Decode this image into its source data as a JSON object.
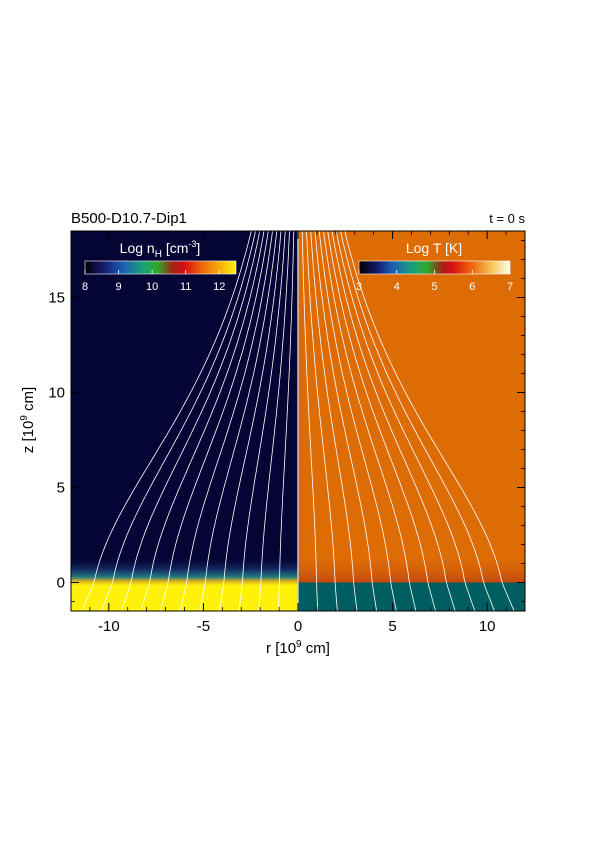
{
  "chart_data": {
    "type": "heatmap",
    "title_left": "B500-D10.7-Dip1",
    "title_right": "t = 0 s",
    "xlabel": "r [10",
    "xlabel_exp": "9",
    "xlabel_unit": " cm]",
    "ylabel": "z [10",
    "ylabel_exp": "9",
    "ylabel_unit": " cm]",
    "xlim": [
      -12,
      12
    ],
    "ylim": [
      -1.5,
      18.5
    ],
    "xticks": [
      -10,
      -5,
      0,
      5,
      10
    ],
    "xtick_labels": [
      "-10",
      "-5",
      "0",
      "5",
      "10"
    ],
    "yticks": [
      0,
      5,
      10,
      15
    ],
    "ytick_labels": [
      "0",
      "5",
      "10",
      "15"
    ],
    "panels": [
      {
        "name": "density",
        "side": "left",
        "colorbar_label": "Log n",
        "colorbar_label_sub": "H",
        "colorbar_label_unit": " [cm",
        "colorbar_label_exp": "-3",
        "colorbar_label_end": "]",
        "colorbar_range": [
          8,
          12.5
        ],
        "colorbar_ticks": [
          8,
          9,
          10,
          11,
          12
        ],
        "colorbar_tick_labels": [
          "8",
          "9",
          "10",
          "11",
          "12"
        ],
        "corona_value": 8.0,
        "chromosphere_value": 12.5,
        "transition_z": 0.0
      },
      {
        "name": "temperature",
        "side": "right",
        "colorbar_label": "Log T [K]",
        "colorbar_range": [
          3,
          7
        ],
        "colorbar_ticks": [
          3,
          4,
          5,
          6,
          7
        ],
        "colorbar_tick_labels": [
          "3",
          "4",
          "5",
          "6",
          "7"
        ],
        "corona_value": 6.1,
        "chromosphere_value": 4.0,
        "transition_z": 0.0
      }
    ],
    "field_lines": {
      "type": "dipole",
      "left_footpoints_r": [
        -11,
        -10,
        -9,
        -8,
        -7,
        -6,
        -5,
        -4,
        -3,
        -2,
        -1
      ],
      "right_footpoints_r": [
        1,
        2,
        3,
        4,
        5,
        6,
        7,
        8,
        9,
        10,
        11
      ],
      "color": "#ffffff"
    },
    "colors": {
      "corona_density": "#040535",
      "chromosphere_density": "#fff20a",
      "corona_temperature": "#dd6c05",
      "chromosphere_temperature": "#005e62",
      "field_line": "#ffffff",
      "divider": "#c8c8c8"
    }
  }
}
